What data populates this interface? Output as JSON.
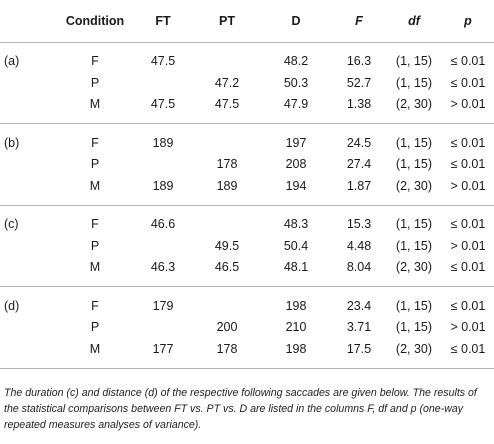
{
  "table": {
    "headers": {
      "condition": "Condition",
      "ft": "FT",
      "pt": "PT",
      "d": "D",
      "f": "F",
      "df": "df",
      "p": "p"
    },
    "groups": [
      {
        "label": "(a)",
        "rows": [
          {
            "cond": "F",
            "ft": "47.5",
            "pt": "",
            "d": "48.2",
            "f": "16.3",
            "df": "(1, 15)",
            "p": "≤ 0.01"
          },
          {
            "cond": "P",
            "ft": "",
            "pt": "47.2",
            "d": "50.3",
            "f": "52.7",
            "df": "(1, 15)",
            "p": "≤ 0.01"
          },
          {
            "cond": "M",
            "ft": "47.5",
            "pt": "47.5",
            "d": "47.9",
            "f": "1.38",
            "df": "(2, 30)",
            "p": "> 0.01"
          }
        ]
      },
      {
        "label": "(b)",
        "rows": [
          {
            "cond": "F",
            "ft": "189",
            "pt": "",
            "d": "197",
            "f": "24.5",
            "df": "(1, 15)",
            "p": "≤ 0.01"
          },
          {
            "cond": "P",
            "ft": "",
            "pt": "178",
            "d": "208",
            "f": "27.4",
            "df": "(1, 15)",
            "p": "≤ 0.01"
          },
          {
            "cond": "M",
            "ft": "189",
            "pt": "189",
            "d": "194",
            "f": "1.87",
            "df": "(2, 30)",
            "p": "> 0.01"
          }
        ]
      },
      {
        "label": "(c)",
        "rows": [
          {
            "cond": "F",
            "ft": "46.6",
            "pt": "",
            "d": "48.3",
            "f": "15.3",
            "df": "(1, 15)",
            "p": "≤ 0.01"
          },
          {
            "cond": "P",
            "ft": "",
            "pt": "49.5",
            "d": "50.4",
            "f": "4.48",
            "df": "(1, 15)",
            "p": "> 0.01"
          },
          {
            "cond": "M",
            "ft": "46.3",
            "pt": "46.5",
            "d": "48.1",
            "f": "8.04",
            "df": "(2, 30)",
            "p": "≤ 0.01"
          }
        ]
      },
      {
        "label": "(d)",
        "rows": [
          {
            "cond": "F",
            "ft": "179",
            "pt": "",
            "d": "198",
            "f": "23.4",
            "df": "(1, 15)",
            "p": "≤ 0.01"
          },
          {
            "cond": "P",
            "ft": "",
            "pt": "200",
            "d": "210",
            "f": "3.71",
            "df": "(1, 15)",
            "p": "> 0.01"
          },
          {
            "cond": "M",
            "ft": "177",
            "pt": "178",
            "d": "198",
            "f": "17.5",
            "df": "(2, 30)",
            "p": "≤ 0.01"
          }
        ]
      }
    ]
  },
  "footnote": "The duration (c) and distance (d) of the respective following saccades are given below. The results of the statistical comparisons between FT vs. PT vs. D are listed in the columns F, df and p (one-way repeated measures analyses of variance)."
}
